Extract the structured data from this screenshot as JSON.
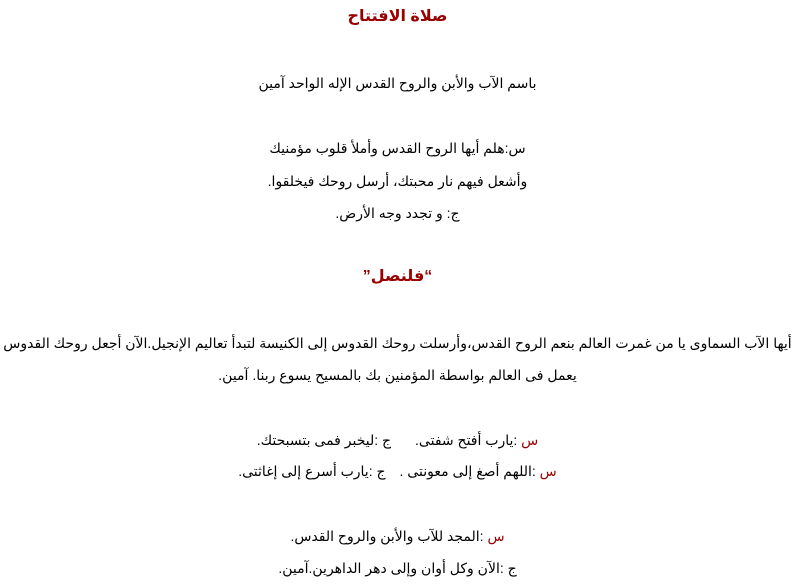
{
  "colors": {
    "title": "#990000",
    "marker": "#990000",
    "text": "#000000"
  },
  "opening": {
    "title": "صلاة الافتتاح",
    "invocation": "باسم الآب والأبن والروح القدس الإله الواحد آمين",
    "v1": "س:هلم أيها الروح القدس وأملأ قلوب مؤمنيك",
    "v2": "وأشعل فيهم نار محبتك، أرسل روحك فيخلقوا.",
    "r1": "ج: و تجدد وجه الأرض."
  },
  "prayer": {
    "title": "“فلنصل”",
    "p1": "أيها الآب السماوى يا من غمرت العالم بنعم الروح القدس،وأرسلت روحك القدوس إلى الكنيسة لتبدأ تعاليم الإنجيل.الآن أجعل روحك القدوس",
    "p2": "يعمل فى العالم بواسطة المؤمنين بك بالمسيح يسوع ربنا. آمين."
  },
  "responses": {
    "s_marker": "س",
    "j_marker": "ج",
    "l1_s": " :يارب أفتح شفتى.",
    "l1_j": "ج :ليخبر فمى بتسبحتك.",
    "l2_s": " :اللهم أصغ إلى معونتى .",
    "l2_j": "ج :يارب أسرع إلى إغاثتى.",
    "l3_s": " :المجد للآب والأبن والروح القدس.",
    "l4": "ج :الآن وكل أوان وإلى دهر الداهرين.آمين."
  }
}
